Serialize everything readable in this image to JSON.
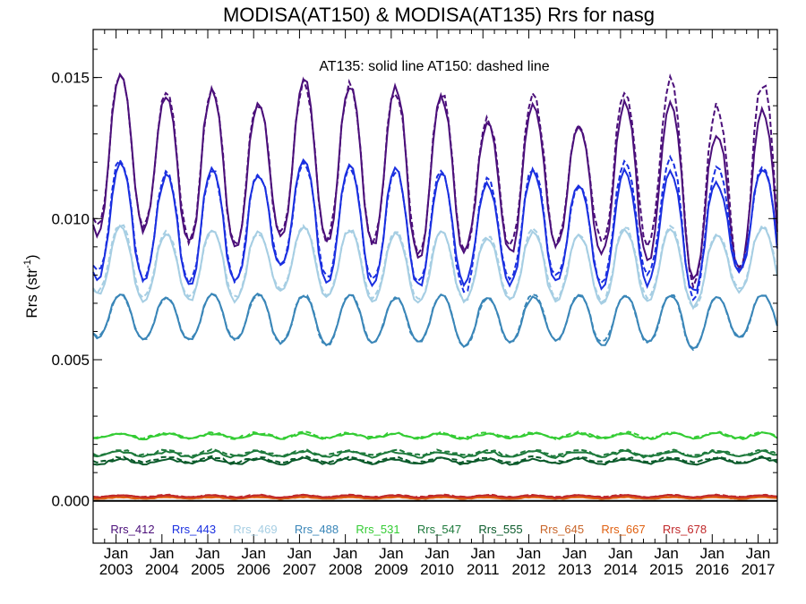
{
  "chart_data": {
    "type": "line",
    "title": "MODISA(AT150) & MODISA(AT135)  Rrs for nasg",
    "annotation": "AT135: solid line   AT150: dashed line",
    "ylabel_main": "Rrs (str",
    "ylabel_sup": "-1",
    "ylabel_end": ")",
    "ylim": [
      -0.0015,
      0.0167
    ],
    "xlim": [
      2002.5,
      2017.42
    ],
    "yticks": [
      {
        "value": 0.0,
        "label": "0.000"
      },
      {
        "value": 0.005,
        "label": "0.005"
      },
      {
        "value": 0.01,
        "label": "0.010"
      },
      {
        "value": 0.015,
        "label": "0.015"
      }
    ],
    "xticks": [
      {
        "value": 2003.0,
        "month": "Jan",
        "year": "2003"
      },
      {
        "value": 2004.0,
        "month": "Jan",
        "year": "2004"
      },
      {
        "value": 2005.0,
        "month": "Jan",
        "year": "2005"
      },
      {
        "value": 2006.0,
        "month": "Jan",
        "year": "2006"
      },
      {
        "value": 2007.0,
        "month": "Jan",
        "year": "2007"
      },
      {
        "value": 2008.0,
        "month": "Jan",
        "year": "2008"
      },
      {
        "value": 2009.0,
        "month": "Jan",
        "year": "2009"
      },
      {
        "value": 2010.0,
        "month": "Jan",
        "year": "2010"
      },
      {
        "value": 2011.0,
        "month": "Jan",
        "year": "2011"
      },
      {
        "value": 2012.0,
        "month": "Jan",
        "year": "2012"
      },
      {
        "value": 2013.0,
        "month": "Jan",
        "year": "2013"
      },
      {
        "value": 2014.0,
        "month": "Jan",
        "year": "2014"
      },
      {
        "value": 2015.0,
        "month": "Jan",
        "year": "2015"
      },
      {
        "value": 2016.0,
        "month": "Jan",
        "year": "2016"
      },
      {
        "value": 2017.0,
        "month": "Jan",
        "year": "2017"
      }
    ],
    "legend_placement": "bottom",
    "zero_line": true,
    "series": [
      {
        "name": "Rrs_412",
        "color": "#4B0F7A",
        "amplitude": 0.0023,
        "AT135_peaks": [
          0.0151,
          0.0143,
          0.0146,
          0.0141,
          0.0149,
          0.0147,
          0.0146,
          0.0143,
          0.0133,
          0.0141,
          0.0133,
          0.0141,
          0.0141,
          0.013,
          0.0138
        ],
        "AT150_peaks": [
          0.0151,
          0.0144,
          0.0146,
          0.0141,
          0.0148,
          0.0147,
          0.0145,
          0.0144,
          0.0135,
          0.0143,
          0.0133,
          0.0145,
          0.0149,
          0.014,
          0.0148
        ],
        "AT135_troughs": [
          0.0095,
          0.0096,
          0.0091,
          0.0089,
          0.0093,
          0.0091,
          0.009,
          0.0085,
          0.0088,
          0.0088,
          0.009,
          0.0088,
          0.0085,
          0.0078,
          0.0082
        ],
        "AT150_troughs": [
          0.0097,
          0.0097,
          0.0092,
          0.009,
          0.0094,
          0.0092,
          0.0092,
          0.0087,
          0.0088,
          0.009,
          0.0091,
          0.0092,
          0.0091,
          0.0077,
          0.0081
        ]
      },
      {
        "name": "Rrs_443",
        "color": "#1A2FE0",
        "amplitude": 0.0019,
        "AT135_peaks": [
          0.0119,
          0.0115,
          0.0117,
          0.0116,
          0.0121,
          0.0118,
          0.0117,
          0.0116,
          0.0112,
          0.0117,
          0.0112,
          0.0117,
          0.0116,
          0.0113,
          0.0118
        ],
        "AT150_peaks": [
          0.0121,
          0.0116,
          0.0117,
          0.0116,
          0.012,
          0.0118,
          0.0117,
          0.0117,
          0.0114,
          0.0118,
          0.0112,
          0.012,
          0.0121,
          0.0118,
          0.0118
        ],
        "AT135_troughs": [
          0.0079,
          0.0078,
          0.0076,
          0.0077,
          0.0083,
          0.0078,
          0.0077,
          0.0076,
          0.0077,
          0.0077,
          0.0078,
          0.0076,
          0.0077,
          0.0074,
          0.0081
        ],
        "AT150_troughs": [
          0.0081,
          0.0079,
          0.0077,
          0.0078,
          0.0084,
          0.0079,
          0.0078,
          0.0077,
          0.0074,
          0.0078,
          0.0079,
          0.0077,
          0.008,
          0.0072,
          0.0082
        ]
      },
      {
        "name": "Rrs_469",
        "color": "#A6CEE3",
        "amplitude": 0.0014,
        "AT135_peaks": [
          0.0097,
          0.0094,
          0.0096,
          0.0095,
          0.0097,
          0.0096,
          0.0095,
          0.0095,
          0.0093,
          0.0095,
          0.0094,
          0.0096,
          0.0096,
          0.0094,
          0.0097
        ],
        "AT150_peaks": [
          0.0098,
          0.0095,
          0.0096,
          0.0095,
          0.0097,
          0.0096,
          0.0096,
          0.0095,
          0.0094,
          0.0096,
          0.0094,
          0.0097,
          0.0097,
          0.0095,
          0.0097
        ],
        "AT135_troughs": [
          0.0073,
          0.0071,
          0.0071,
          0.0071,
          0.0074,
          0.0072,
          0.0071,
          0.007,
          0.0071,
          0.0071,
          0.0071,
          0.007,
          0.0071,
          0.0069,
          0.0074
        ],
        "AT150_troughs": [
          0.0074,
          0.0072,
          0.0072,
          0.0072,
          0.0075,
          0.0073,
          0.0072,
          0.0071,
          0.0071,
          0.0072,
          0.0072,
          0.0071,
          0.0072,
          0.0068,
          0.0075
        ]
      },
      {
        "name": "Rrs_488",
        "color": "#3A86B8",
        "amplitude": 0.0008,
        "AT135_peaks": [
          0.0073,
          0.0072,
          0.0073,
          0.0073,
          0.0073,
          0.0073,
          0.0072,
          0.0073,
          0.0072,
          0.0072,
          0.0073,
          0.0073,
          0.0073,
          0.0072,
          0.0073
        ],
        "AT150_peaks": [
          0.0073,
          0.0072,
          0.0073,
          0.0073,
          0.0073,
          0.0073,
          0.0072,
          0.0073,
          0.0072,
          0.0073,
          0.0073,
          0.0073,
          0.0073,
          0.0072,
          0.0073
        ],
        "AT135_troughs": [
          0.0058,
          0.0057,
          0.0057,
          0.0057,
          0.0056,
          0.0055,
          0.0056,
          0.0056,
          0.0055,
          0.0056,
          0.0057,
          0.0055,
          0.0056,
          0.0054,
          0.0058
        ],
        "AT150_troughs": [
          0.0058,
          0.0057,
          0.0057,
          0.0057,
          0.0056,
          0.0055,
          0.0056,
          0.0056,
          0.0055,
          0.0056,
          0.0057,
          0.0056,
          0.0056,
          0.0054,
          0.0058
        ]
      },
      {
        "name": "Rrs_531",
        "color": "#33CC33",
        "amplitude": 0.0001,
        "AT135_level": 0.0023,
        "AT150_level": 0.00232
      },
      {
        "name": "Rrs_547",
        "color": "#1E7A3C",
        "amplitude": 0.0001,
        "AT135_level": 0.00165,
        "AT150_level": 0.0017
      },
      {
        "name": "Rrs_555",
        "color": "#0A5A2A",
        "amplitude": 0.0001,
        "AT135_level": 0.0014,
        "AT150_level": 0.00145
      },
      {
        "name": "Rrs_645",
        "color": "#C86428",
        "amplitude": 3e-05,
        "AT135_level": 0.00012,
        "AT150_level": 0.00013
      },
      {
        "name": "Rrs_667",
        "color": "#E06010",
        "amplitude": 3e-05,
        "AT135_level": 0.0001,
        "AT150_level": 0.00011
      },
      {
        "name": "Rrs_678",
        "color": "#C0282A",
        "amplitude": 4e-05,
        "AT135_level": 0.00016,
        "AT150_level": 0.00017
      }
    ]
  }
}
